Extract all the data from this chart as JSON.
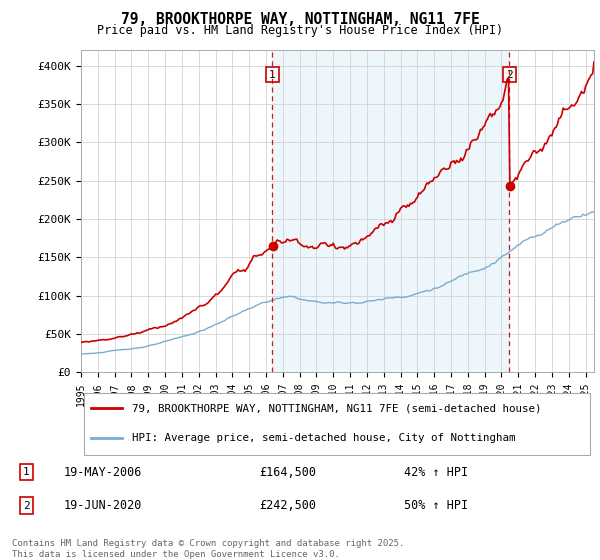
{
  "title": "79, BROOKTHORPE WAY, NOTTINGHAM, NG11 7FE",
  "subtitle": "Price paid vs. HM Land Registry's House Price Index (HPI)",
  "ylabel_ticks": [
    "£0",
    "£50K",
    "£100K",
    "£150K",
    "£200K",
    "£250K",
    "£300K",
    "£350K",
    "£400K"
  ],
  "ylim": [
    0,
    420000
  ],
  "xlim_start": 1995.0,
  "xlim_end": 2025.5,
  "sale1_date": 2006.38,
  "sale1_price": 164500,
  "sale1_label": "1",
  "sale1_text": "19-MAY-2006",
  "sale1_amount": "£164,500",
  "sale1_hpi": "42% ↑ HPI",
  "sale2_date": 2020.47,
  "sale2_price": 242500,
  "sale2_label": "2",
  "sale2_text": "19-JUN-2020",
  "sale2_amount": "£242,500",
  "sale2_hpi": "50% ↑ HPI",
  "legend_line1": "79, BROOKTHORPE WAY, NOTTINGHAM, NG11 7FE (semi-detached house)",
  "legend_line2": "HPI: Average price, semi-detached house, City of Nottingham",
  "footer": "Contains HM Land Registry data © Crown copyright and database right 2025.\nThis data is licensed under the Open Government Licence v3.0.",
  "line_color_red": "#cc0000",
  "line_color_blue": "#7aadcf",
  "fill_color_blue": "#ddeef8",
  "grid_color": "#cccccc",
  "bg_color": "#ffffff"
}
